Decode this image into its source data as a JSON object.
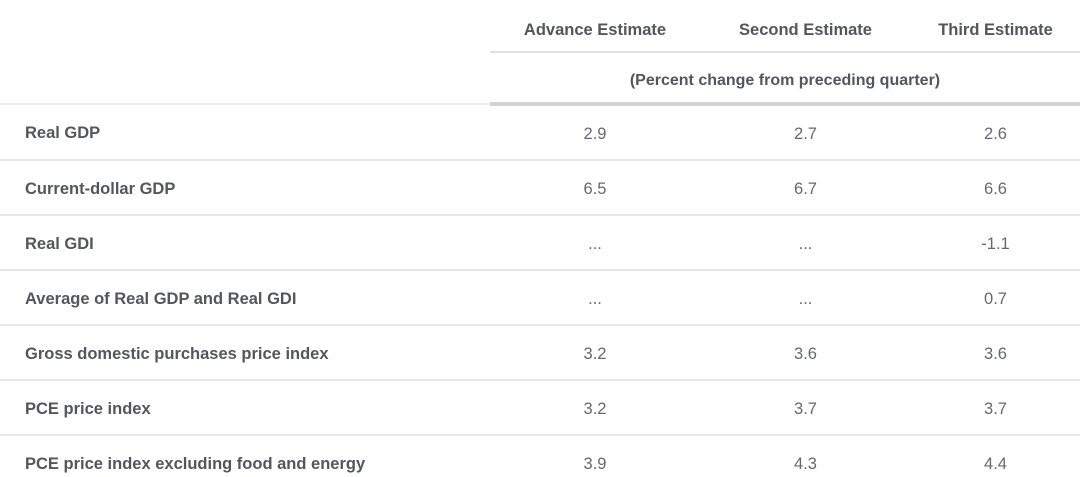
{
  "chart_data": {
    "type": "table",
    "units_note": "(Percent change from preceding quarter)",
    "columns": [
      "Advance Estimate",
      "Second Estimate",
      "Third Estimate"
    ],
    "rows": [
      {
        "label": "Real GDP",
        "values": [
          "2.9",
          "2.7",
          "2.6"
        ]
      },
      {
        "label": "Current-dollar GDP",
        "values": [
          "6.5",
          "6.7",
          "6.6"
        ]
      },
      {
        "label": "Real GDI",
        "values": [
          "...",
          "...",
          "-1.1"
        ]
      },
      {
        "label": "Average of Real GDP and Real GDI",
        "values": [
          "...",
          "...",
          "0.7"
        ]
      },
      {
        "label": "Gross domestic purchases price index",
        "values": [
          "3.2",
          "3.6",
          "3.6"
        ]
      },
      {
        "label": "PCE price index",
        "values": [
          "3.2",
          "3.7",
          "3.7"
        ]
      },
      {
        "label": "PCE price index excluding food and energy",
        "values": [
          "3.9",
          "4.3",
          "4.4"
        ]
      }
    ],
    "layout": {
      "label_column": "no header text (empty corner)",
      "values_alignment": "center",
      "grid": "horizontal row dividers only, no vertical lines"
    },
    "colors": {
      "header_text": "#55565a",
      "label_text": "#55565a",
      "value_text": "#66686c",
      "row_divider": "#e7e7e7",
      "header_divider": "#e0e0e0",
      "thick_units_divider": "#d2d3d4",
      "background": "#ffffff"
    }
  }
}
